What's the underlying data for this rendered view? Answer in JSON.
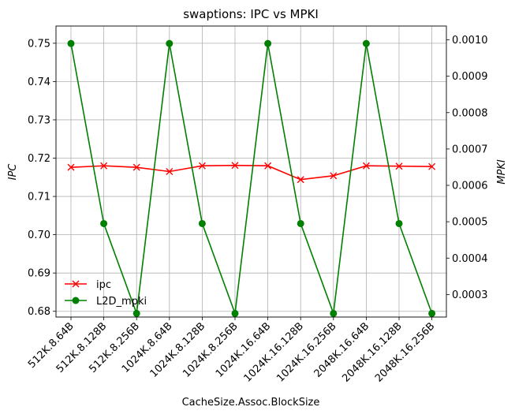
{
  "chart_data": {
    "type": "line",
    "title": "swaptions: IPC vs MPKI",
    "xlabel": "CacheSize.Assoc.BlockSize",
    "ylabel_left": "IPC",
    "ylabel_right": "MPKI",
    "categories": [
      "512K.8.64B",
      "512K.8.128B",
      "512K.8.256B",
      "1024K.8.64B",
      "1024K.8.128B",
      "1024K.8.256B",
      "1024K.16.64B",
      "1024K.16.128B",
      "1024K.16.256B",
      "2048K.16.64B",
      "2048K.16.128B",
      "2048K.16.256B"
    ],
    "left_axis": {
      "ylim": [
        0.6785,
        0.7545
      ],
      "ticks": [
        "0.68",
        "0.69",
        "0.70",
        "0.71",
        "0.72",
        "0.73",
        "0.74",
        "0.75"
      ]
    },
    "right_axis": {
      "ylim": [
        0.000238,
        0.001038
      ],
      "ticks": [
        "0.0003",
        "0.0004",
        "0.0005",
        "0.0006",
        "0.0007",
        "0.0008",
        "0.0009",
        "0.0010"
      ]
    },
    "grid": true,
    "legend_position": "bottom-left",
    "series": [
      {
        "name": "ipc",
        "axis": "left",
        "color": "#ff0000",
        "marker": "x",
        "values": [
          0.7176,
          0.718,
          0.7176,
          0.7165,
          0.718,
          0.7181,
          0.718,
          0.7144,
          0.7154,
          0.718,
          0.7179,
          0.7178
        ]
      },
      {
        "name": "L2D_mpki",
        "axis": "right",
        "color": "#008000",
        "marker": "o",
        "values": [
          0.00099,
          0.000495,
          0.000248,
          0.00099,
          0.000495,
          0.000248,
          0.00099,
          0.000495,
          0.000248,
          0.00099,
          0.000495,
          0.000248
        ]
      }
    ]
  }
}
